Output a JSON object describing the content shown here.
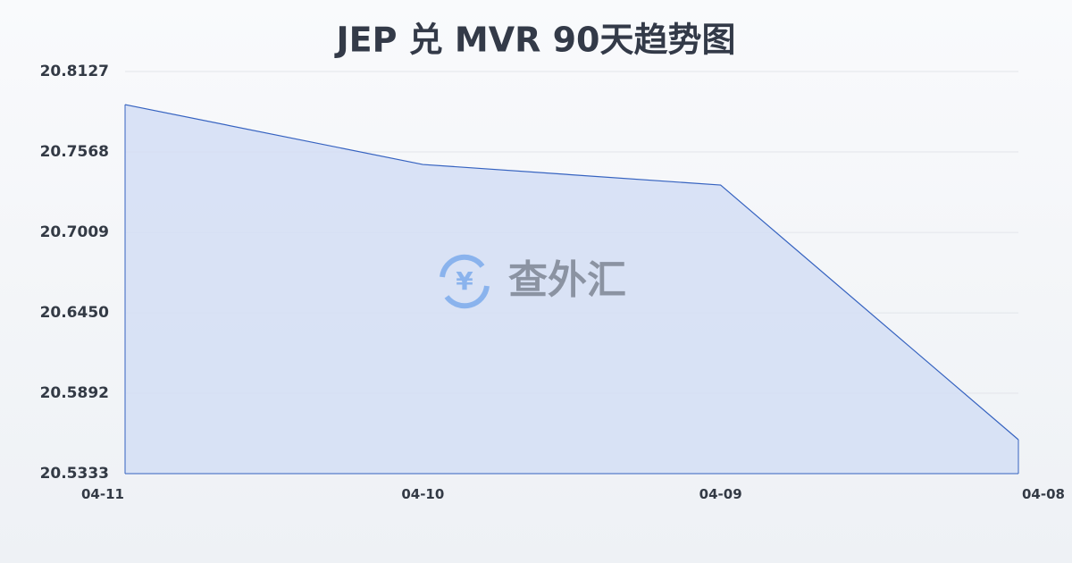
{
  "chart_data": {
    "type": "area",
    "title": "JEP 兑 MVR 90天趋势图",
    "watermark": "查外汇",
    "categories": [
      "04-11",
      "04-10",
      "04-09",
      "04-08"
    ],
    "values": [
      20.7897,
      20.7481,
      20.7338,
      20.5569
    ],
    "color": "#3562c0",
    "fill": "#d4def4",
    "ylim": [
      20.5333,
      20.8127
    ],
    "yticks": [
      20.5333,
      20.5892,
      {
        "value": 20.645,
        "label": "20.6450"
      },
      20.7009,
      20.7568,
      20.8127
    ],
    "grid": true
  }
}
